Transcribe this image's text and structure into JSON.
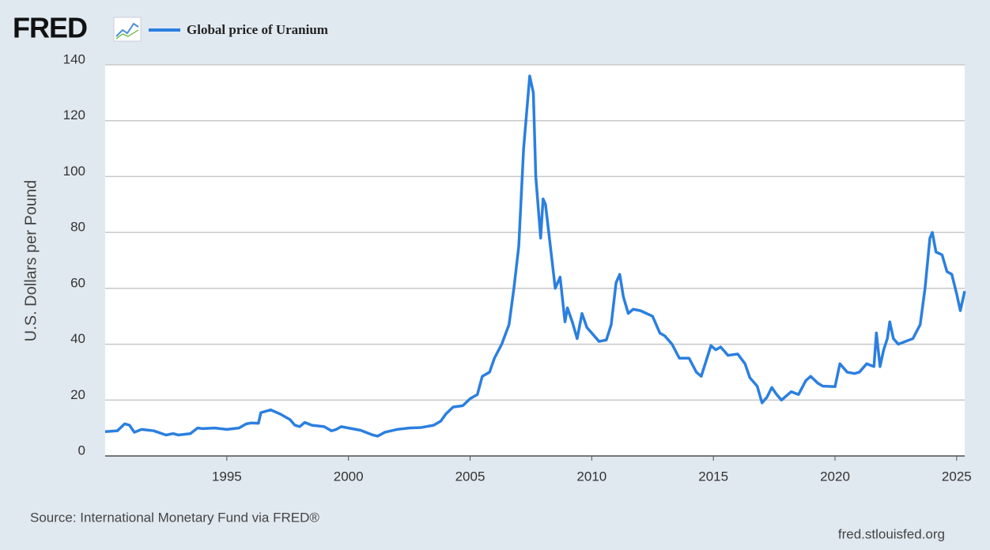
{
  "chart_data": {
    "type": "line",
    "logo": "FRED",
    "ylabel": "U.S. Dollars per Pound",
    "source": "Source: International Monetary Fund via FRED®",
    "credit": "fred.stlouisfed.org",
    "xlim": [
      1990,
      2025.33
    ],
    "xticks": [
      1995,
      2000,
      2005,
      2010,
      2015,
      2020,
      2025
    ],
    "ylim": [
      0,
      140
    ],
    "yticks": [
      0,
      20,
      40,
      60,
      80,
      100,
      120,
      140
    ],
    "grid": true,
    "x": [
      1990.0,
      1990.5,
      1990.8,
      1991.0,
      1991.2,
      1991.5,
      1992.0,
      1992.5,
      1992.8,
      1993.0,
      1993.5,
      1993.8,
      1994.0,
      1994.5,
      1995.0,
      1995.5,
      1995.8,
      1996.0,
      1996.3,
      1996.4,
      1996.8,
      1997.2,
      1997.6,
      1997.8,
      1998.0,
      1998.2,
      1998.5,
      1999.0,
      1999.3,
      1999.5,
      1999.7,
      2000.0,
      2000.5,
      2001.0,
      2001.2,
      2001.5,
      2002.0,
      2002.5,
      2003.0,
      2003.5,
      2003.8,
      2004.0,
      2004.3,
      2004.7,
      2005.0,
      2005.3,
      2005.5,
      2005.8,
      2006.0,
      2006.3,
      2006.6,
      2006.8,
      2007.0,
      2007.2,
      2007.45,
      2007.6,
      2007.7,
      2007.9,
      2008.0,
      2008.1,
      2008.3,
      2008.5,
      2008.7,
      2008.9,
      2009.0,
      2009.2,
      2009.4,
      2009.6,
      2009.8,
      2010.0,
      2010.3,
      2010.6,
      2010.8,
      2011.0,
      2011.15,
      2011.3,
      2011.5,
      2011.7,
      2012.0,
      2012.5,
      2012.8,
      2013.0,
      2013.3,
      2013.6,
      2014.0,
      2014.3,
      2014.5,
      2014.7,
      2014.9,
      2015.1,
      2015.3,
      2015.6,
      2016.0,
      2016.3,
      2016.5,
      2016.8,
      2017.0,
      2017.2,
      2017.4,
      2017.6,
      2017.8,
      2018.0,
      2018.2,
      2018.5,
      2018.8,
      2019.0,
      2019.3,
      2019.5,
      2020.0,
      2020.2,
      2020.5,
      2020.8,
      2021.0,
      2021.3,
      2021.6,
      2021.7,
      2021.85,
      2022.0,
      2022.15,
      2022.25,
      2022.4,
      2022.6,
      2022.9,
      2023.2,
      2023.5,
      2023.7,
      2023.9,
      2024.0,
      2024.15,
      2024.4,
      2024.6,
      2024.8,
      2025.0,
      2025.15,
      2025.33
    ],
    "series": [
      {
        "name": "Global price of Uranium",
        "color": "#2b7fe0",
        "values": [
          8.7,
          9,
          11.5,
          11,
          8.5,
          9.5,
          9,
          7.5,
          8,
          7.5,
          8,
          10,
          9.8,
          10,
          9.5,
          10,
          11.5,
          11.8,
          11.7,
          15.5,
          16.5,
          15,
          13,
          11,
          10.5,
          12,
          11,
          10.5,
          9,
          9.5,
          10.5,
          10,
          9.2,
          7.5,
          7.1,
          8.5,
          9.5,
          10,
          10.2,
          11,
          12.5,
          15,
          17.5,
          18,
          20.5,
          22,
          28.5,
          30,
          35,
          40,
          47,
          60,
          75,
          110,
          136,
          130,
          100,
          78,
          92,
          90,
          75,
          60,
          64,
          48,
          53,
          48,
          42,
          51,
          46,
          44,
          41,
          41.5,
          47,
          62,
          65,
          57,
          51,
          52.5,
          52,
          50,
          44,
          43,
          40,
          35,
          35,
          30,
          28.5,
          34,
          39.5,
          38,
          39,
          36,
          36.5,
          33,
          28,
          25,
          19,
          21,
          24.5,
          22,
          20,
          21.5,
          23,
          22,
          27,
          28.5,
          26,
          25,
          24.8,
          33,
          30,
          29.5,
          30,
          33,
          32,
          44,
          32,
          38,
          42,
          48,
          42,
          40,
          41,
          42,
          47,
          60,
          78,
          80,
          73,
          72,
          66,
          65,
          58,
          52,
          59
        ]
      }
    ]
  }
}
